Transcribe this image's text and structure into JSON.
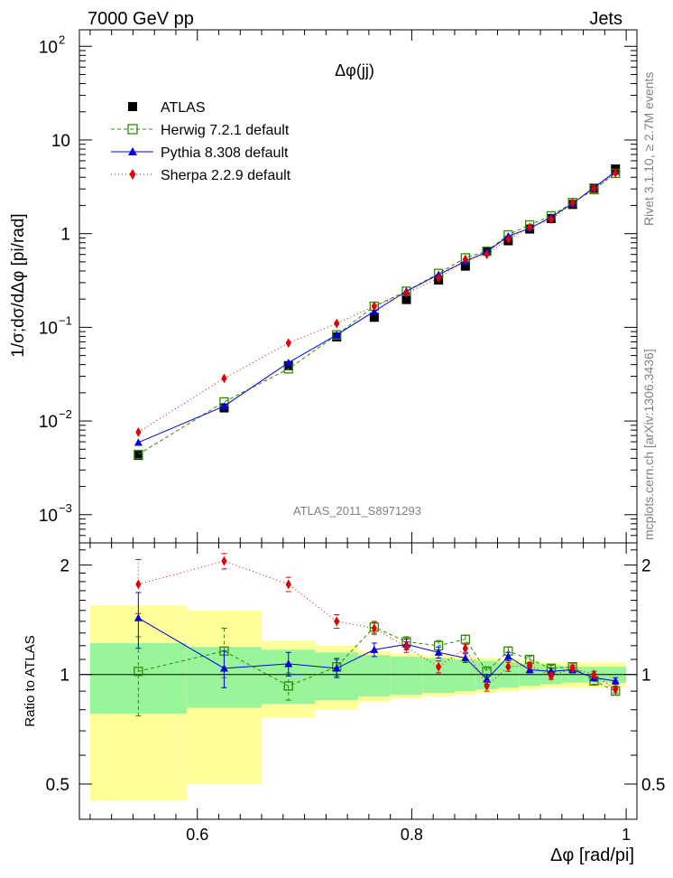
{
  "header": {
    "left": "7000 GeV pp",
    "right": "Jets"
  },
  "side_labels": {
    "rivet": "Rivet 3.1.10, ≥ 2.7M events",
    "mcplots": "mcplots.cern.ch [arXiv:1306.3436]"
  },
  "chart_data": {
    "type": "line",
    "title": "Δφ(jj)",
    "watermark": "ATLAS_2011_S8971293",
    "xlabel": "Δφ [rad/pi]",
    "ylabel": "1/σ;dσ/dΔφ [pi/rad]",
    "ratio_ylabel": "Ratio to ATLAS",
    "xlim": [
      0.49,
      1.01
    ],
    "ylim": [
      0.0005,
      150
    ],
    "ratio_ylim": [
      0.4,
      2.3
    ],
    "yscale": "log",
    "ratio_yscale": "log",
    "legend_position": "top-left",
    "x_ticks": [
      "0.6",
      "0.8",
      "1"
    ],
    "y_ticks": [
      {
        "base": "10",
        "exp": "2"
      },
      {
        "base": "10",
        "exp": ""
      },
      {
        "base": "1",
        "exp": ""
      },
      {
        "base": "10",
        "exp": "−1"
      },
      {
        "base": "10",
        "exp": "−2"
      },
      {
        "base": "10",
        "exp": "−3"
      }
    ],
    "ratio_ticks": [
      "2",
      "1",
      "0.5"
    ],
    "x": [
      0.545,
      0.625,
      0.685,
      0.73,
      0.765,
      0.795,
      0.825,
      0.85,
      0.87,
      0.89,
      0.91,
      0.93,
      0.95,
      0.97,
      0.99
    ],
    "bins": [
      [
        0.5,
        0.59
      ],
      [
        0.59,
        0.66
      ],
      [
        0.66,
        0.71
      ],
      [
        0.71,
        0.75
      ],
      [
        0.75,
        0.78
      ],
      [
        0.78,
        0.81
      ],
      [
        0.81,
        0.84
      ],
      [
        0.84,
        0.86
      ],
      [
        0.86,
        0.88
      ],
      [
        0.88,
        0.9
      ],
      [
        0.9,
        0.92
      ],
      [
        0.92,
        0.94
      ],
      [
        0.94,
        0.96
      ],
      [
        0.96,
        0.98
      ],
      [
        0.98,
        1.0
      ]
    ],
    "data": {
      "name": "ATLAS",
      "color": "#000000",
      "values": [
        0.0043,
        0.0138,
        0.039,
        0.079,
        0.128,
        0.198,
        0.32,
        0.45,
        0.65,
        0.84,
        1.12,
        1.45,
        2.05,
        3.05,
        4.9
      ],
      "band_inner": [
        0.22,
        0.19,
        0.17,
        0.15,
        0.13,
        0.12,
        0.11,
        0.1,
        0.09,
        0.08,
        0.07,
        0.06,
        0.05,
        0.05,
        0.05
      ],
      "band_outer": [
        0.55,
        0.5,
        0.24,
        0.2,
        0.16,
        0.14,
        0.13,
        0.12,
        0.11,
        0.1,
        0.09,
        0.08,
        0.08,
        0.08,
        0.08
      ]
    },
    "series": [
      {
        "name": "Herwig 7.2.1 default",
        "color": "#2e8b00",
        "dash": "4,3",
        "marker": "open-square",
        "values": [
          0.0044,
          0.016,
          0.036,
          0.083,
          0.168,
          0.243,
          0.376,
          0.552,
          0.65,
          0.97,
          1.24,
          1.55,
          2.15,
          2.95,
          4.4
        ],
        "ratio": [
          1.02,
          1.16,
          0.93,
          1.05,
          1.35,
          1.23,
          1.2,
          1.25,
          1.02,
          1.16,
          1.1,
          1.04,
          1.05,
          0.96,
          0.9
        ],
        "ratio_err": [
          0.25,
          0.18,
          0.08,
          0.06,
          0.05,
          0.04,
          0.04,
          0.03,
          0.03,
          0.03,
          0.02,
          0.02,
          0.02,
          0.02,
          0.02
        ]
      },
      {
        "name": "Pythia 8.308 default",
        "color": "#0000e0",
        "dash": "",
        "marker": "triangle",
        "values": [
          0.0059,
          0.0144,
          0.042,
          0.083,
          0.148,
          0.243,
          0.366,
          0.505,
          0.64,
          0.94,
          1.14,
          1.5,
          2.1,
          3.1,
          4.6
        ],
        "ratio": [
          1.43,
          1.04,
          1.07,
          1.04,
          1.17,
          1.21,
          1.15,
          1.11,
          0.97,
          1.12,
          1.03,
          1.02,
          1.03,
          0.98,
          0.96
        ],
        "ratio_err": [
          0.25,
          0.12,
          0.08,
          0.06,
          0.05,
          0.04,
          0.04,
          0.03,
          0.03,
          0.03,
          0.02,
          0.02,
          0.02,
          0.02,
          0.02
        ]
      },
      {
        "name": "Sherpa 2.2.9 default",
        "color": "#e00000",
        "dash": "1,3",
        "marker": "diamond",
        "values": [
          0.0076,
          0.0285,
          0.068,
          0.11,
          0.168,
          0.232,
          0.336,
          0.532,
          0.6,
          0.87,
          1.17,
          1.42,
          2.13,
          3.02,
          4.45
        ],
        "ratio": [
          1.77,
          2.05,
          1.77,
          1.4,
          1.34,
          1.19,
          1.05,
          1.18,
          0.93,
          1.05,
          1.06,
          0.99,
          1.04,
          1.0,
          0.91
        ],
        "ratio_err": [
          0.3,
          0.1,
          0.08,
          0.06,
          0.05,
          0.04,
          0.04,
          0.03,
          0.03,
          0.03,
          0.02,
          0.02,
          0.02,
          0.02,
          0.02
        ]
      }
    ]
  }
}
